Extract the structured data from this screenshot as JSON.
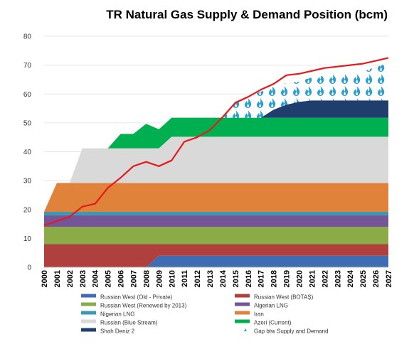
{
  "chart_data": {
    "type": "area",
    "title": "TR Natural Gas Supply & Demand Position (bcm)",
    "x": [
      "2000",
      "2001",
      "2002",
      "2003",
      "2004",
      "2005",
      "2006",
      "2007",
      "2008",
      "2009",
      "2010",
      "2011",
      "2012",
      "2013",
      "2014",
      "2015",
      "2016",
      "2017",
      "2018",
      "2019",
      "2020",
      "2021",
      "2022",
      "2023",
      "2024",
      "2025",
      "2026",
      "2027"
    ],
    "ylim": [
      0,
      80
    ],
    "yticks": [
      0,
      10,
      20,
      30,
      40,
      50,
      60,
      70,
      80
    ],
    "grid": true,
    "legend_position": "bottom",
    "series": [
      {
        "name": "Russian West (Old - Private)",
        "color": "#3f6db3",
        "values": [
          0,
          0,
          0,
          0,
          0,
          0,
          0,
          0,
          0,
          4,
          4,
          4,
          4,
          4,
          4,
          4,
          4,
          4,
          4,
          4,
          4,
          4,
          4,
          4,
          4,
          4,
          4,
          4
        ]
      },
      {
        "name": "Russian West (BOTAŞ)",
        "color": "#b0403e",
        "values": [
          8,
          8,
          8,
          8,
          8,
          8,
          8,
          8,
          8,
          4,
          4,
          4,
          4,
          4,
          4,
          4,
          4,
          4,
          4,
          4,
          4,
          4,
          4,
          4,
          4,
          4,
          4,
          4
        ]
      },
      {
        "name": "Russian West (Renewed by 2013)",
        "color": "#8aab46",
        "values": [
          6,
          6,
          6,
          6,
          6,
          6,
          6,
          6,
          6,
          6,
          6,
          6,
          6,
          6,
          6,
          6,
          6,
          6,
          6,
          6,
          6,
          6,
          6,
          6,
          6,
          6,
          6,
          6
        ]
      },
      {
        "name": "Algerian LNG",
        "color": "#765498",
        "values": [
          4,
          4,
          4,
          4,
          4,
          4,
          4,
          4,
          4,
          4,
          4,
          4,
          4,
          4,
          4,
          4,
          4,
          4,
          4,
          4,
          4,
          4,
          4,
          4,
          4,
          4,
          4,
          4
        ]
      },
      {
        "name": "Nigerian LNG",
        "color": "#3a98b3",
        "values": [
          1.2,
          1.2,
          1.2,
          1.2,
          1.2,
          1.2,
          1.2,
          1.2,
          1.2,
          1.2,
          1.2,
          1.2,
          1.2,
          1.2,
          1.2,
          1.2,
          1.2,
          1.2,
          1.2,
          1.2,
          1.2,
          1.2,
          1.2,
          1.2,
          1.2,
          1.2,
          1.2,
          1.2
        ]
      },
      {
        "name": "Iran",
        "color": "#e0823a",
        "values": [
          0,
          10,
          10,
          10,
          10,
          10,
          10,
          10,
          10,
          10,
          10,
          10,
          10,
          10,
          10,
          10,
          10,
          10,
          10,
          10,
          10,
          10,
          10,
          10,
          10,
          10,
          10,
          10
        ]
      },
      {
        "name": "Russian (Blue Stream)",
        "color": "#d9d9d9",
        "values": [
          0,
          0,
          0,
          12,
          12,
          12,
          12,
          12,
          12,
          12,
          16,
          16,
          16,
          16,
          16,
          16,
          16,
          16,
          16,
          16,
          16,
          16,
          16,
          16,
          16,
          16,
          16,
          16
        ]
      },
      {
        "name": "Azeri (Current)",
        "color": "#00b050",
        "values": [
          0,
          0,
          0,
          0,
          0,
          0,
          5,
          5,
          8.5,
          6.6,
          6.6,
          6.6,
          6.6,
          6.6,
          6.6,
          6.6,
          6.6,
          6.6,
          6.6,
          6.6,
          6.6,
          6.6,
          6.6,
          6.6,
          6.6,
          6.6,
          6.6,
          6.6
        ]
      },
      {
        "name": "Shah Deniz 2",
        "color": "#1f3e6e",
        "values": [
          0,
          0,
          0,
          0,
          0,
          0,
          0,
          0,
          0,
          0,
          0,
          0,
          0,
          0,
          0,
          0,
          0,
          0,
          2.8,
          4.5,
          5.5,
          6,
          6,
          6,
          6,
          6,
          6,
          6
        ]
      },
      {
        "name": "Gap btw Supply and Demand",
        "color": "#2a9fd0",
        "values": [
          0,
          0,
          0,
          0,
          0,
          0,
          0,
          0,
          0,
          0,
          0,
          0,
          0,
          0,
          0,
          5,
          7.5,
          9,
          8,
          7.5,
          7,
          8,
          8.5,
          9,
          9.5,
          10,
          11.5,
          13
        ]
      }
    ],
    "demand": {
      "color": "#e41a1c",
      "values": [
        14.5,
        16,
        17.5,
        21,
        22,
        27.5,
        31,
        35,
        36.5,
        35,
        37,
        43.5,
        45,
        47.5,
        52,
        57,
        59,
        61.5,
        63.5,
        66.5,
        67,
        68,
        69,
        69.5,
        70,
        70.5,
        71.5,
        72.5
      ]
    },
    "legend_rows": [
      [
        "Russian West (Old - Private)",
        "Russian West (BOTAŞ)"
      ],
      [
        "Russian West (Renewed by 2013)",
        "Algerian LNG"
      ],
      [
        "Nigerian LNG",
        "Iran"
      ],
      [
        "Russian (Blue Stream)",
        "Azeri (Current)"
      ],
      [
        "Shah Deniz 2",
        "Gap btw Supply and Demand"
      ]
    ]
  }
}
